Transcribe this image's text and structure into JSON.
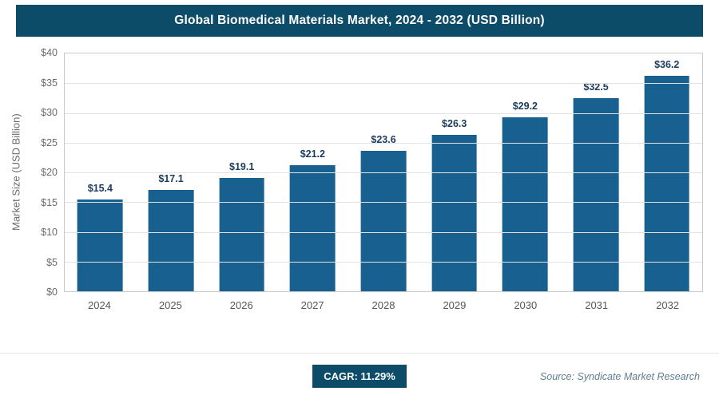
{
  "chart_data": {
    "type": "bar",
    "title": "Global Biomedical Materials Market, 2024 - 2032 (USD Billion)",
    "categories": [
      "2024",
      "2025",
      "2026",
      "2027",
      "2028",
      "2029",
      "2030",
      "2031",
      "2032"
    ],
    "values": [
      15.4,
      17.1,
      19.1,
      21.2,
      23.6,
      26.3,
      29.2,
      32.5,
      36.2
    ],
    "value_labels": [
      "$15.4",
      "$17.1",
      "$19.1",
      "$21.2",
      "$23.6",
      "$26.3",
      "$29.2",
      "$32.5",
      "$36.2"
    ],
    "xlabel": "",
    "ylabel": "Market Size (USD Billion)",
    "ylim": [
      0,
      40
    ],
    "ytick_step": 5,
    "y_tick_labels": [
      "$0",
      "$5",
      "$10",
      "$15",
      "$20",
      "$25",
      "$30",
      "$35",
      "$40"
    ],
    "grid": true,
    "legend": false,
    "colors": {
      "bar": "#17608f",
      "title_bar_bg": "#0d4c68",
      "badge_bg": "#0d4c68",
      "value_label_text": "#1c3d5e"
    }
  },
  "footer": {
    "cagr_label": "CAGR: 11.29%",
    "source": "Source: Syndicate Market Research"
  }
}
